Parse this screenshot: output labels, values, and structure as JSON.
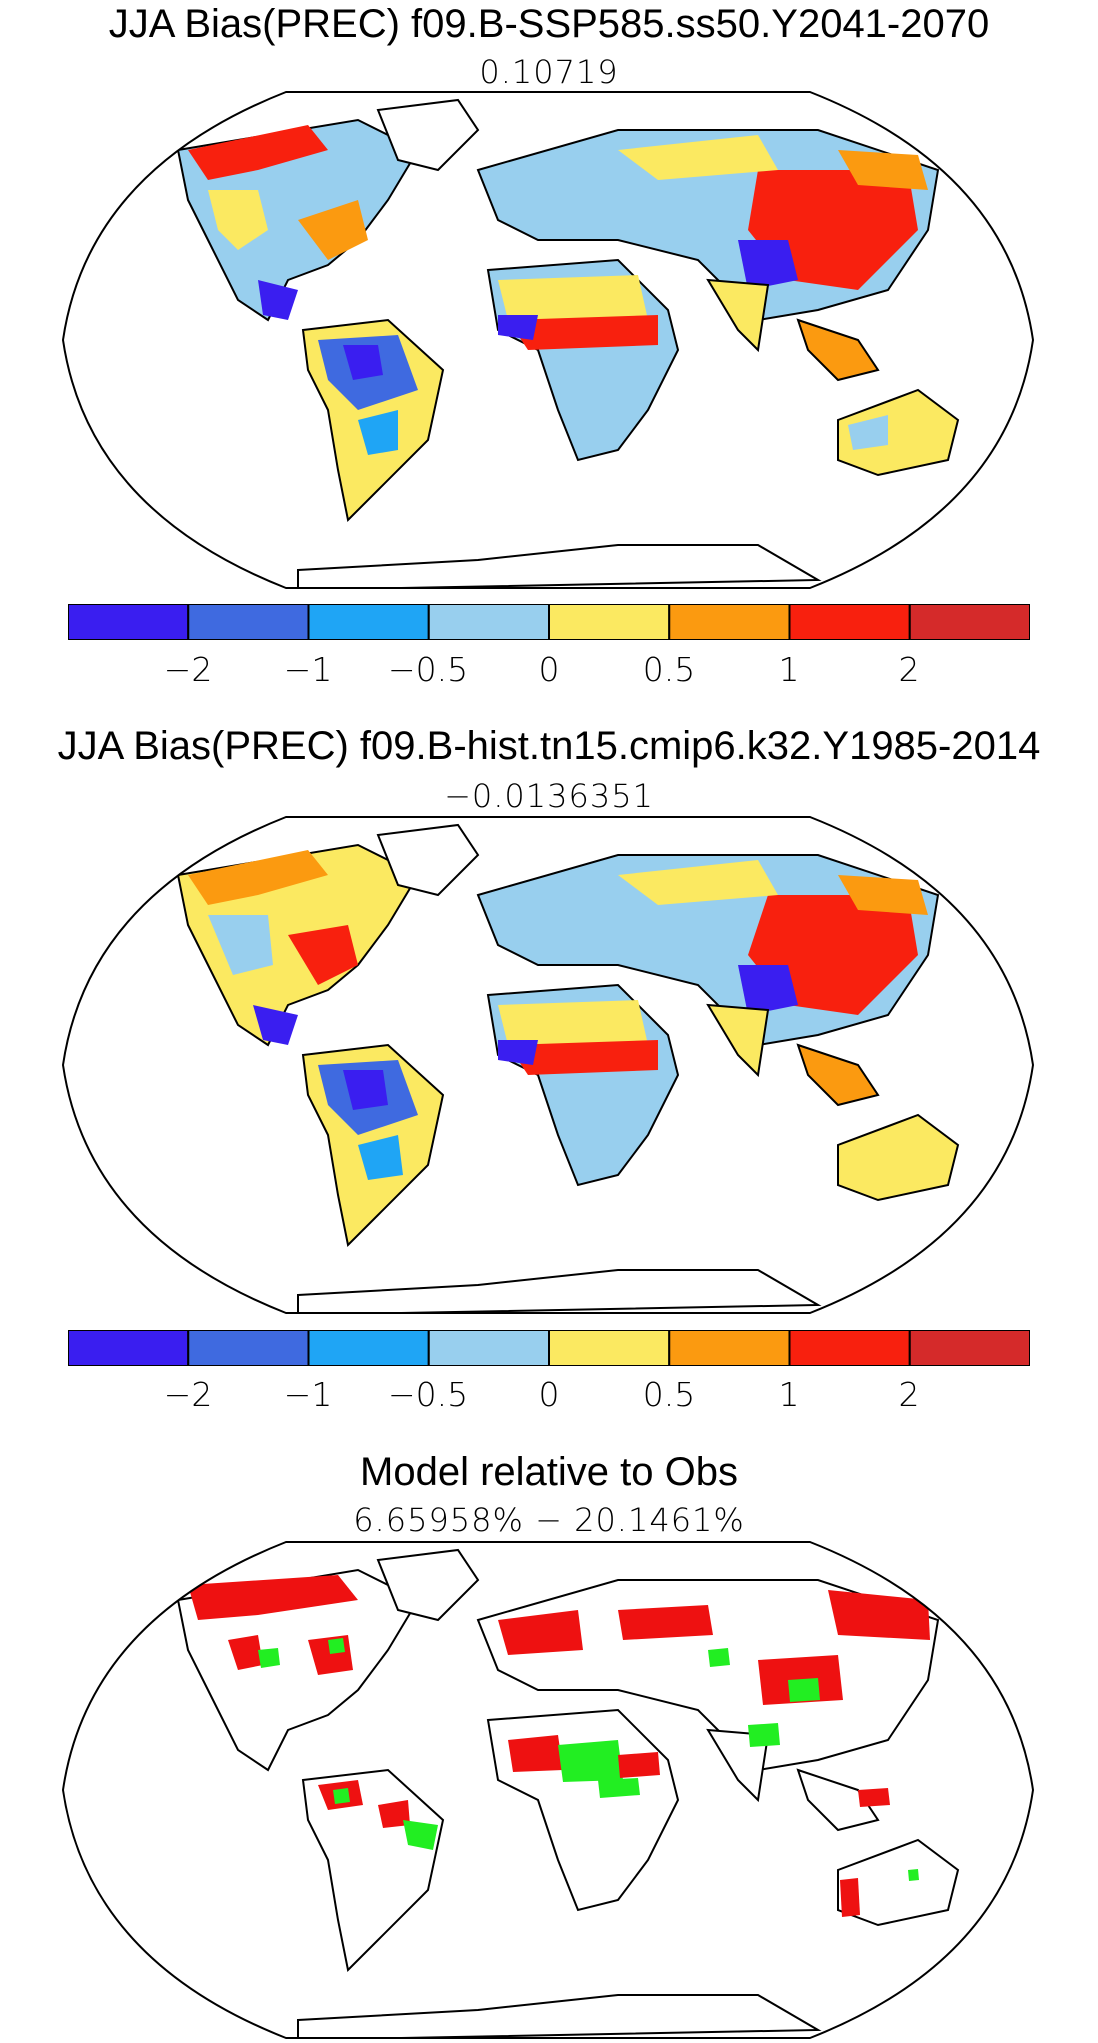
{
  "panels": [
    {
      "title": "JJA Bias(PREC) f09.B-SSP585.ss50.Y2041-2070",
      "subtitle": "0.10719"
    },
    {
      "title": "JJA Bias(PREC) f09.B-hist.tn15.cmip6.k32.Y1985-2014",
      "subtitle": "−0.0136351"
    },
    {
      "title": "Model relative to Obs",
      "subtitle": "6.65958% − 20.1461%"
    }
  ],
  "colorbar": {
    "colors": [
      "#3a1ef0",
      "#3f6ae0",
      "#1fa5f5",
      "#98cfee",
      "#fbe961",
      "#fb9a10",
      "#f8200e",
      "#d52a2a"
    ],
    "tick_labels": [
      "−2",
      "−1",
      "−0.5",
      "0",
      "0.5",
      "1",
      "2"
    ]
  },
  "relative_colors": {
    "red": "#ee1111",
    "green": "#22ee22"
  }
}
